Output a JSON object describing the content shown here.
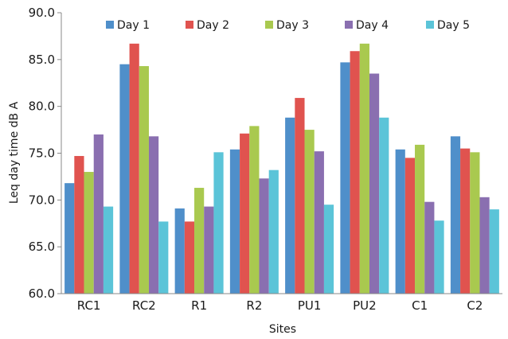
{
  "chart_data": {
    "type": "bar",
    "title": "",
    "xlabel": "Sites",
    "ylabel": "Leq day time dB A",
    "ylim": [
      60.0,
      90.0
    ],
    "yticks": [
      "60.0",
      "65.0",
      "70.0",
      "75.0",
      "80.0",
      "85.0",
      "90.0"
    ],
    "grid": false,
    "legend_position": "top",
    "categories": [
      "RC1",
      "RC2",
      "R1",
      "R2",
      "PU1",
      "PU2",
      "C1",
      "C2"
    ],
    "series": [
      {
        "name": "Day 1",
        "color": "#4f8fca",
        "values": [
          71.8,
          84.5,
          69.1,
          75.4,
          78.8,
          84.7,
          75.4,
          76.8
        ]
      },
      {
        "name": "Day 2",
        "color": "#e0534f",
        "values": [
          74.7,
          86.7,
          67.7,
          77.1,
          80.9,
          85.9,
          74.5,
          75.5
        ]
      },
      {
        "name": "Day 3",
        "color": "#a9c94f",
        "values": [
          73.0,
          84.3,
          71.3,
          77.9,
          77.5,
          86.7,
          75.9,
          75.1
        ]
      },
      {
        "name": "Day 4",
        "color": "#8a6fb0",
        "values": [
          77.0,
          76.8,
          69.3,
          72.3,
          75.2,
          83.5,
          69.8,
          70.3
        ]
      },
      {
        "name": "Day 5",
        "color": "#5bc4d8",
        "values": [
          69.3,
          67.7,
          75.1,
          73.2,
          69.5,
          78.8,
          67.8,
          69.0
        ]
      }
    ]
  }
}
